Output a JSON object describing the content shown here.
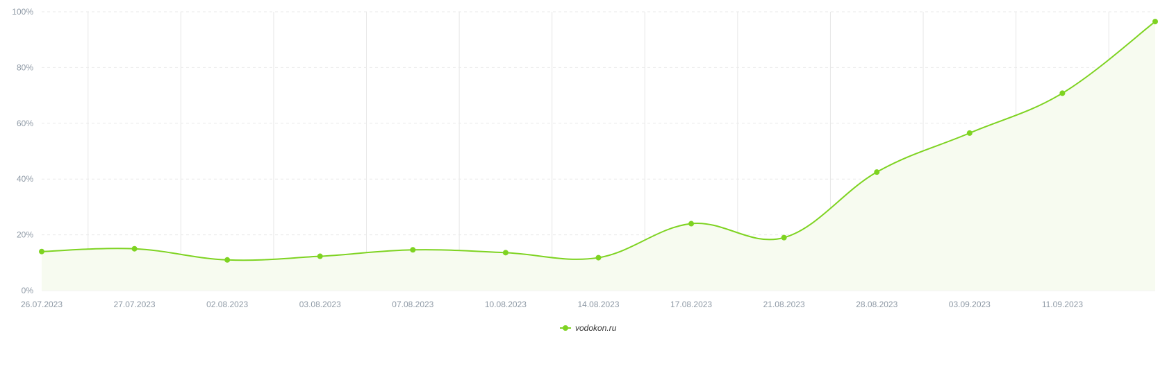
{
  "chart_data": {
    "type": "area",
    "categories": [
      "26.07.2023",
      "27.07.2023",
      "02.08.2023",
      "03.08.2023",
      "07.08.2023",
      "10.08.2023",
      "14.08.2023",
      "17.08.2023",
      "21.08.2023",
      "28.08.2023",
      "03.09.2023",
      "11.09.2023",
      ""
    ],
    "series": [
      {
        "name": "vodokon.ru",
        "values": [
          14,
          15,
          11,
          12.3,
          14.6,
          13.6,
          11.8,
          24,
          19,
          42.5,
          56.5,
          70.8,
          96.5
        ]
      }
    ],
    "ylim": [
      0,
      100
    ],
    "yticks": [
      "0%",
      "20%",
      "40%",
      "60%",
      "80%",
      "100%"
    ],
    "ytick_values": [
      0,
      20,
      40,
      60,
      80,
      100
    ],
    "grid": true,
    "legend_position": "bottom-center",
    "colors": {
      "line": "#7ed321",
      "area": "#f7fbf0",
      "grid_v": "#e6e6e6",
      "grid_h": "#e9e9e9",
      "tick_text": "#8f9aa6"
    }
  }
}
